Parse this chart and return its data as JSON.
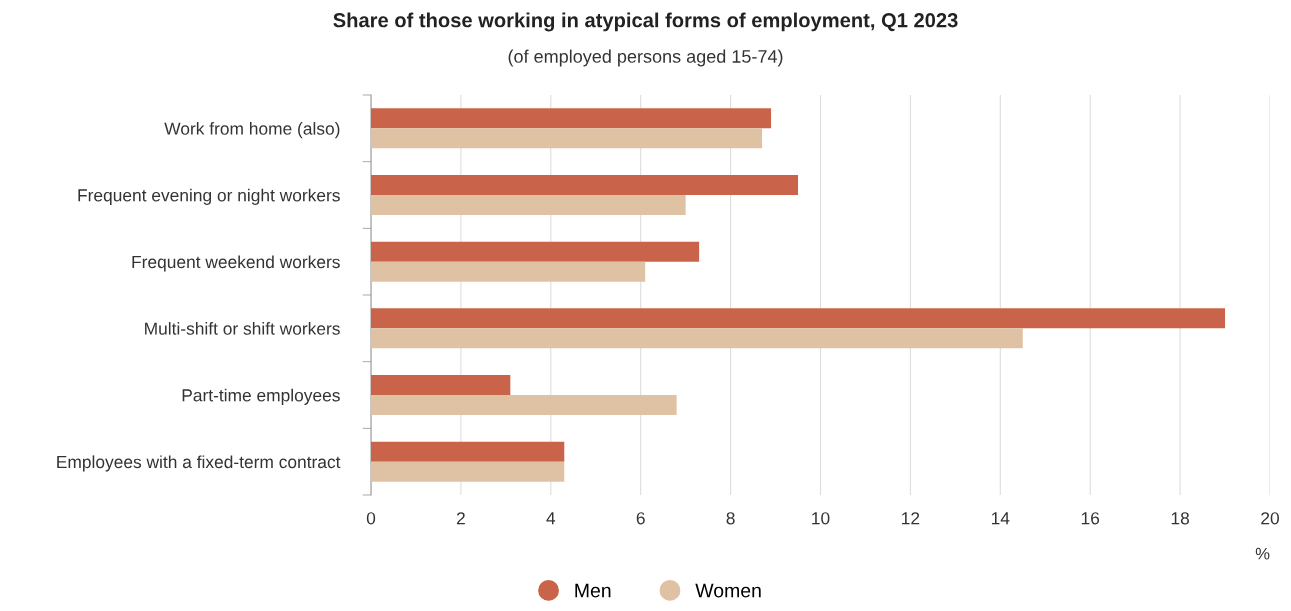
{
  "chart_data": {
    "type": "bar",
    "orientation": "horizontal",
    "title": "Share of those working in atypical forms of employment, Q1 2023",
    "subtitle": "(of employed persons aged 15-74)",
    "xlabel": "%",
    "categories": [
      "Work from home (also)",
      "Frequent evening or night workers",
      "Frequent weekend workers",
      "Multi-shift or shift workers",
      "Part-time employees",
      "Employees with a fixed-term contract"
    ],
    "series": [
      {
        "name": "Men",
        "color": "#c9644a",
        "values": [
          8.9,
          9.5,
          7.3,
          19.0,
          3.1,
          4.3
        ]
      },
      {
        "name": "Women",
        "color": "#dfc2a3",
        "values": [
          8.7,
          7.0,
          6.1,
          14.5,
          6.8,
          4.3
        ]
      }
    ],
    "xlim": [
      0,
      20
    ],
    "xticks": [
      0,
      2,
      4,
      6,
      8,
      10,
      12,
      14,
      16,
      18,
      20
    ],
    "grid": "x",
    "legend": "bottom"
  }
}
